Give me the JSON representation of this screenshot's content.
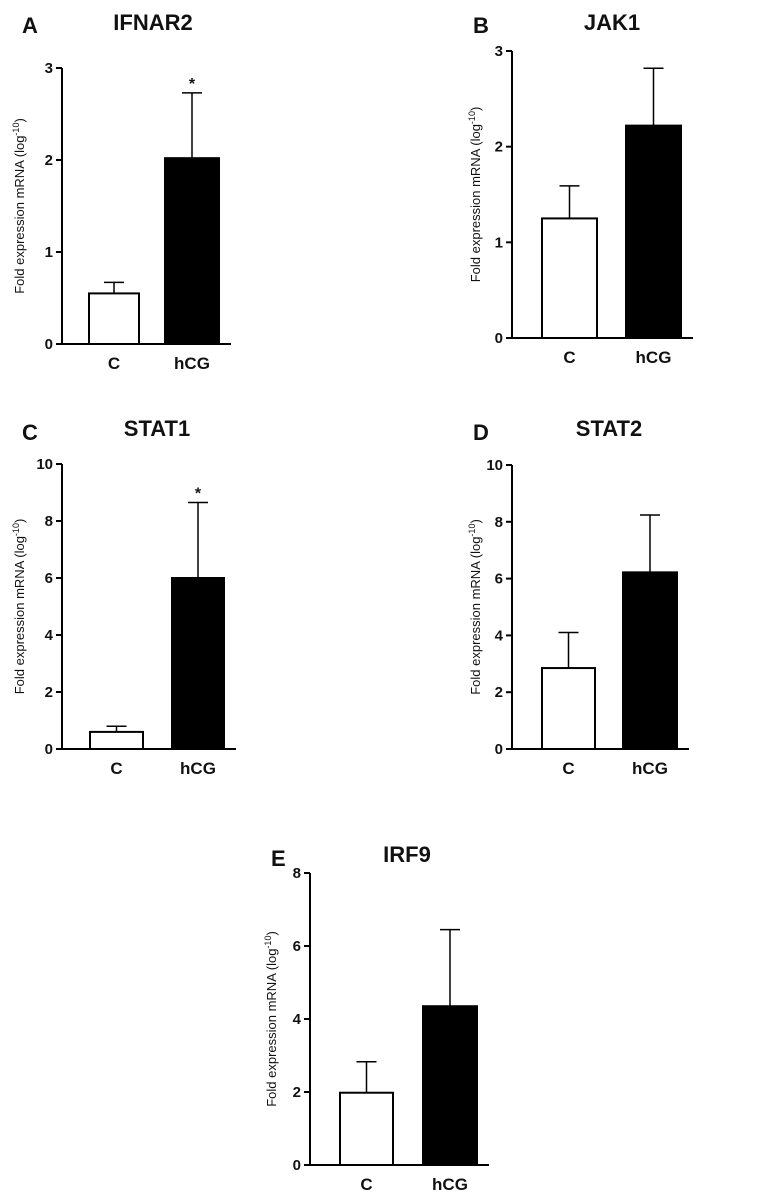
{
  "chart_data": [
    {
      "panel": "A",
      "type": "bar",
      "title": "IFNAR2",
      "categories": [
        "C",
        "hCG"
      ],
      "values": [
        0.55,
        2.02
      ],
      "errors": [
        0.12,
        0.71
      ],
      "fills": [
        "#ffffff",
        "#000000"
      ],
      "significance": [
        "",
        "*"
      ],
      "ylabel": "Fold expression mRNA (log",
      "ylabel_sup": "-10",
      "ylabel_close": ")",
      "ylim": [
        0,
        3
      ],
      "yticks": [
        0,
        1,
        2,
        3
      ],
      "ytick_labels": [
        "0",
        "1",
        "2",
        "3"
      ]
    },
    {
      "panel": "B",
      "type": "bar",
      "title": "JAK1",
      "categories": [
        "C",
        "hCG"
      ],
      "values": [
        1.25,
        2.22
      ],
      "errors": [
        0.34,
        0.6
      ],
      "fills": [
        "#ffffff",
        "#000000"
      ],
      "significance": [
        "",
        ""
      ],
      "ylabel": "Fold expression mRNA (log",
      "ylabel_sup": "-10",
      "ylabel_close": ")",
      "ylim": [
        0,
        3
      ],
      "yticks": [
        0,
        1,
        2,
        3
      ],
      "ytick_labels": [
        "0",
        "1",
        "2",
        "3"
      ]
    },
    {
      "panel": "C",
      "type": "bar",
      "title": "STAT1",
      "categories": [
        "C",
        "hCG"
      ],
      "values": [
        0.6,
        6.0
      ],
      "errors": [
        0.2,
        2.65
      ],
      "fills": [
        "#ffffff",
        "#000000"
      ],
      "significance": [
        "",
        "*"
      ],
      "ylabel": "Fold expression mRNA (log",
      "ylabel_sup": "-10",
      "ylabel_close": ")",
      "ylim": [
        0,
        10
      ],
      "yticks": [
        0,
        2,
        4,
        6,
        8,
        10
      ],
      "ytick_labels": [
        "0",
        "2",
        "4",
        "6",
        "8",
        "10"
      ]
    },
    {
      "panel": "D",
      "type": "bar",
      "title": "STAT2",
      "categories": [
        "C",
        "hCG"
      ],
      "values": [
        2.85,
        6.22
      ],
      "errors": [
        1.25,
        2.02
      ],
      "fills": [
        "#ffffff",
        "#000000"
      ],
      "significance": [
        "",
        ""
      ],
      "ylabel": "Fold expression mRNA (log",
      "ylabel_sup": "-10",
      "ylabel_close": ")",
      "ylim": [
        0,
        10
      ],
      "yticks": [
        0,
        2,
        4,
        6,
        8,
        10
      ],
      "ytick_labels": [
        "0",
        "2",
        "4",
        "6",
        "8",
        "10"
      ]
    },
    {
      "panel": "E",
      "type": "bar",
      "title": "IRF9",
      "categories": [
        "C",
        "hCG"
      ],
      "values": [
        1.98,
        4.35
      ],
      "errors": [
        0.85,
        2.1
      ],
      "fills": [
        "#ffffff",
        "#000000"
      ],
      "significance": [
        "",
        ""
      ],
      "ylabel": "Fold expression mRNA (log",
      "ylabel_sup": "-10",
      "ylabel_close": ")",
      "ylim": [
        0,
        8
      ],
      "yticks": [
        0,
        2,
        4,
        6,
        8
      ],
      "ytick_labels": [
        "0",
        "2",
        "4",
        "6",
        "8"
      ]
    }
  ]
}
